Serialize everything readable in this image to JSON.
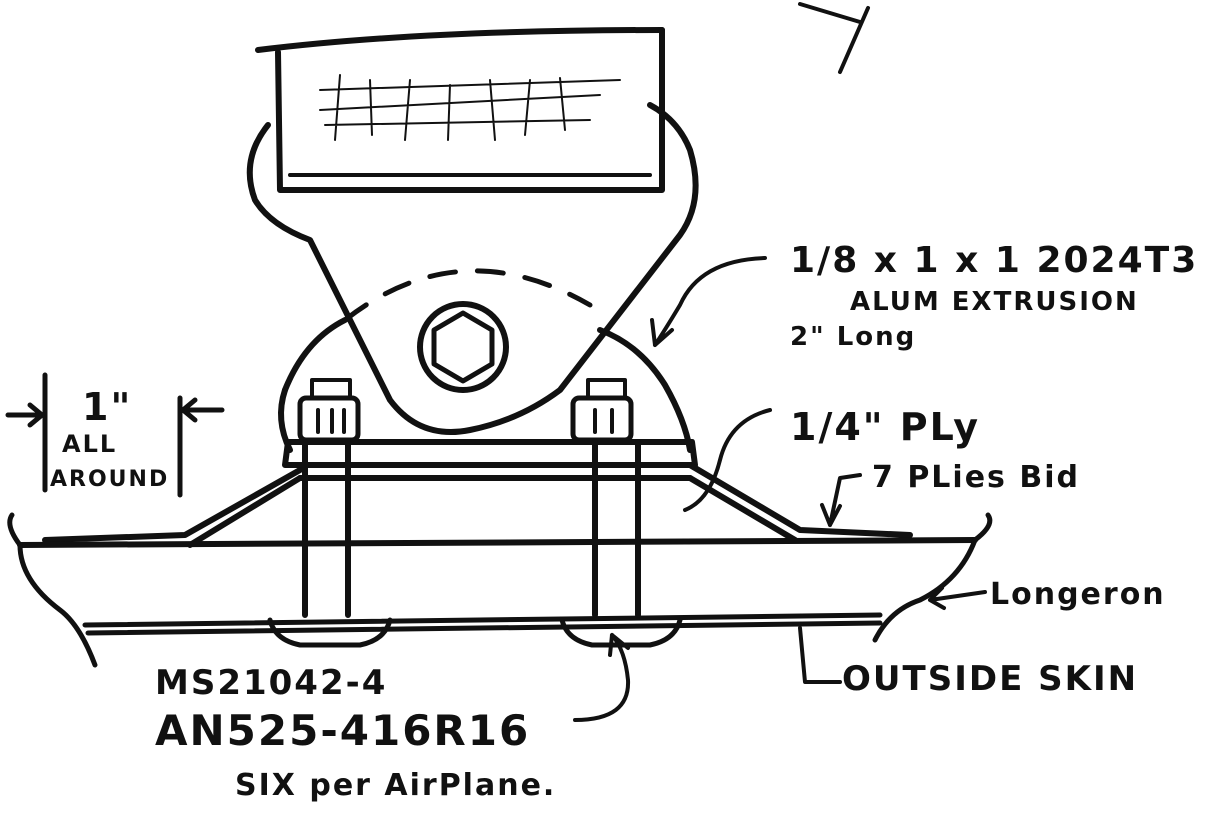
{
  "callouts": {
    "extrusion_line1": "1/8 x 1 x 1  2024T3",
    "extrusion_line2": "ALUM EXTRUSION",
    "extrusion_line3": "2\" Long",
    "ply": "1/4\" PLy",
    "plies": "7 PLies Bid",
    "longeron": "Longeron",
    "skin": "OUTSIDE SKIN",
    "dimension_value": "1\"",
    "dimension_note_line1": "ALL",
    "dimension_note_line2": "AROUND",
    "bolt_line1": "MS21042-4",
    "bolt_line2": "AN525-416R16",
    "bolt_line3": "SIX per AirPlane."
  }
}
